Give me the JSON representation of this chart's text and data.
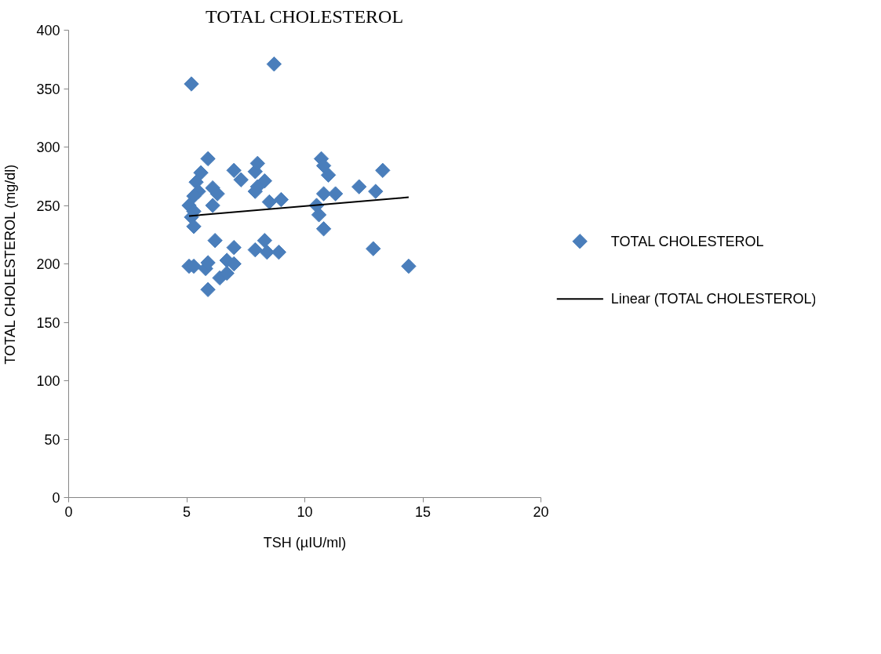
{
  "chart_data": {
    "type": "scatter",
    "title": "TOTAL CHOLESTEROL",
    "xlabel": "TSH (µIU/ml)",
    "ylabel": "TOTAL CHOLESTEROL (mg/dl)",
    "xlim": [
      0,
      20
    ],
    "xticks": [
      0,
      5,
      10,
      15,
      20
    ],
    "ylim": [
      0,
      400
    ],
    "yticks": [
      0,
      50,
      100,
      150,
      200,
      250,
      300,
      350,
      400
    ],
    "grid": false,
    "legend": "right",
    "series": [
      {
        "name": "TOTAL CHOLESTEROL",
        "color": "#4a7ebb",
        "marker": "diamond",
        "x": [
          5.2,
          8.7,
          5.9,
          7.0,
          7.3,
          7.9,
          8.0,
          8.3,
          8.0,
          7.9,
          5.6,
          5.4,
          5.5,
          5.3,
          5.1,
          5.3,
          5.2,
          5.3,
          6.1,
          6.3,
          6.1,
          6.2,
          5.1,
          5.3,
          5.8,
          5.9,
          6.4,
          6.7,
          6.7,
          7.0,
          7.0,
          5.9,
          8.5,
          9.0,
          7.9,
          8.3,
          8.4,
          8.9,
          10.7,
          10.8,
          11.0,
          10.5,
          10.6,
          10.8,
          11.3,
          10.8,
          12.3,
          13.0,
          13.3,
          12.9,
          14.4
        ],
        "values": [
          354,
          371,
          290,
          280,
          272,
          279,
          286,
          271,
          266,
          262,
          278,
          270,
          262,
          258,
          250,
          245,
          240,
          232,
          265,
          260,
          250,
          220,
          198,
          198,
          196,
          201,
          188,
          192,
          203,
          200,
          214,
          178,
          253,
          255,
          212,
          220,
          210,
          210,
          290,
          284,
          276,
          250,
          242,
          260,
          260,
          230,
          266,
          262,
          280,
          213,
          198
        ]
      },
      {
        "name": "Linear (TOTAL CHOLESTEROL)",
        "type": "line",
        "color": "#000000",
        "line_style": "solid",
        "x": [
          5.1,
          14.4
        ],
        "values": [
          241,
          257
        ]
      }
    ]
  }
}
